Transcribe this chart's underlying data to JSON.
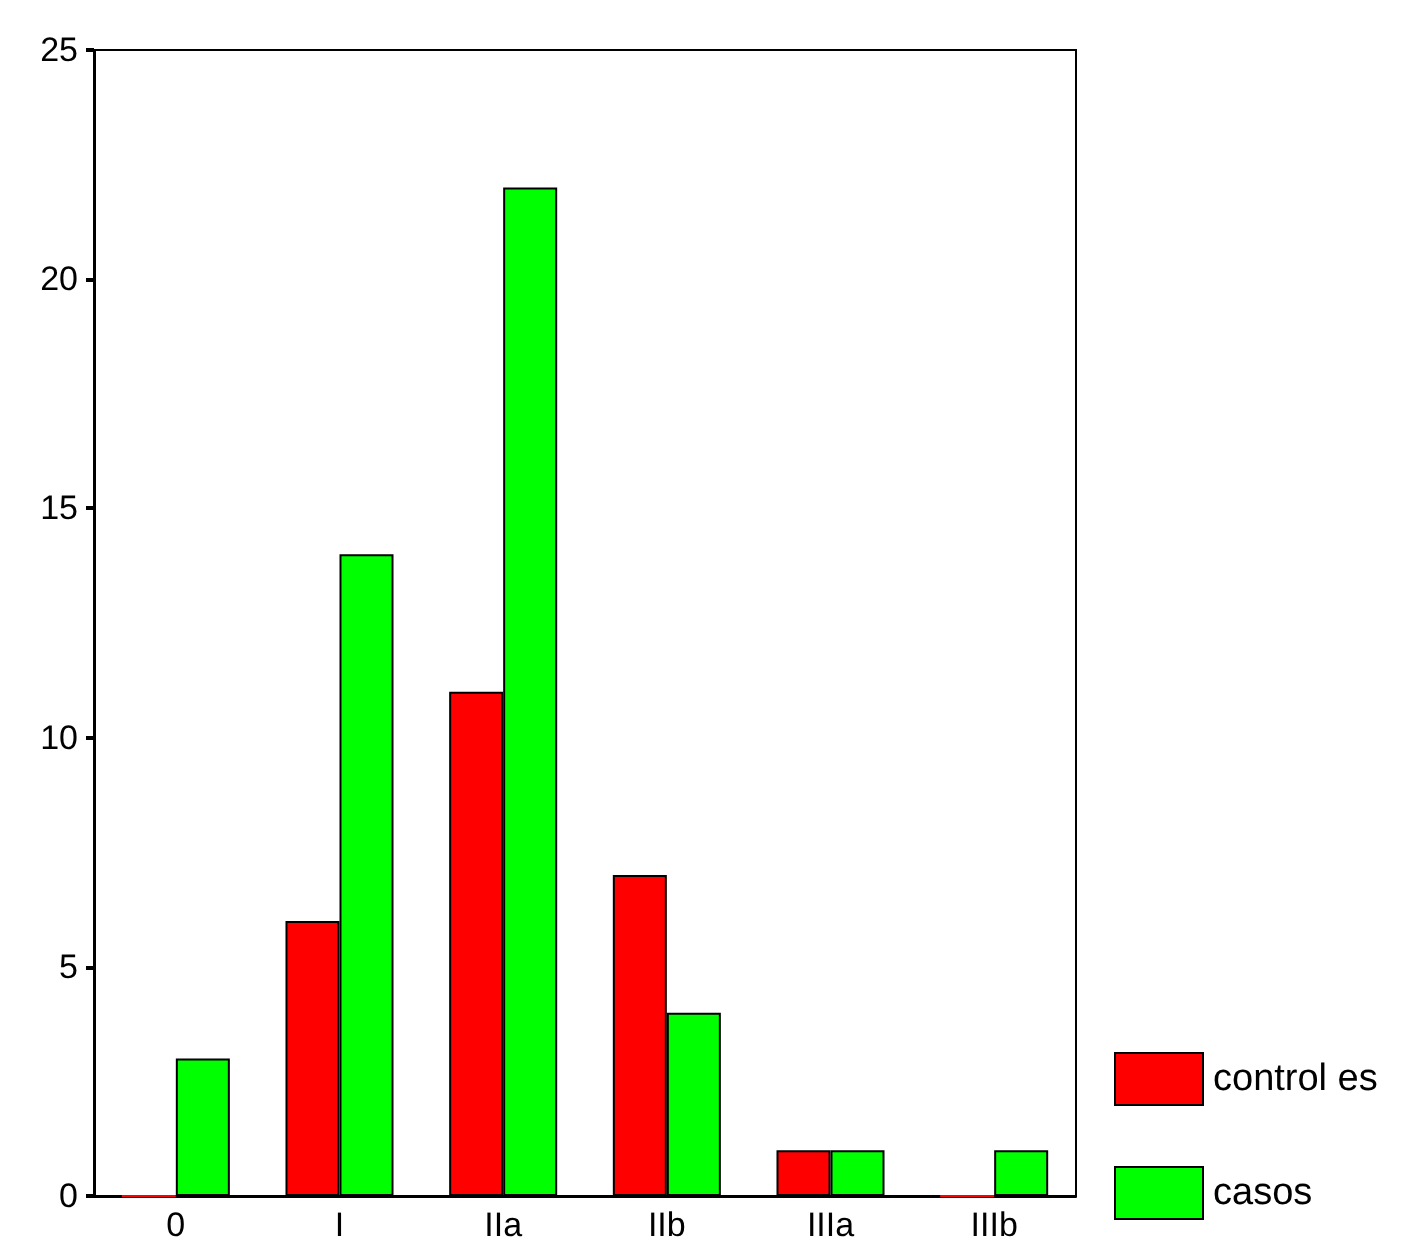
{
  "chart_data": {
    "type": "bar",
    "categories": [
      "0",
      "I",
      "IIa",
      "IIb",
      "IIIa",
      "IIIb"
    ],
    "series": [
      {
        "name": "control es",
        "color": "#ff0000",
        "values": [
          0,
          6,
          11,
          7,
          1,
          0
        ]
      },
      {
        "name": "casos",
        "color": "#00ff00",
        "values": [
          3,
          14,
          22,
          4,
          1,
          1
        ]
      }
    ],
    "ylim": [
      0,
      25
    ],
    "yticks": [
      0,
      5,
      10,
      15,
      20,
      25
    ],
    "grid": false,
    "legend": "bottom right"
  }
}
